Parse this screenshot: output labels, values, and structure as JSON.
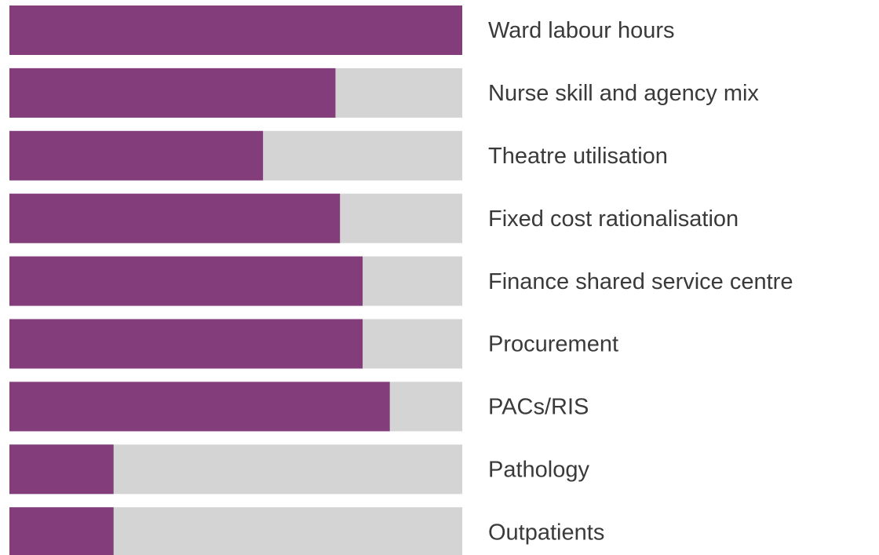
{
  "chart_data": {
    "type": "bar",
    "orientation": "horizontal",
    "categories": [
      "Ward labour hours",
      "Nurse skill and agency mix",
      "Theatre utilisation",
      "Fixed cost rationalisation",
      "Finance shared service centre",
      "Procurement",
      "PACs/RIS",
      "Pathology",
      "Outpatients"
    ],
    "values": [
      100,
      72,
      56,
      73,
      78,
      78,
      84,
      23,
      23
    ],
    "color": "#833d7a",
    "track_color": "#d4d4d4",
    "xlim": [
      0,
      100
    ]
  }
}
